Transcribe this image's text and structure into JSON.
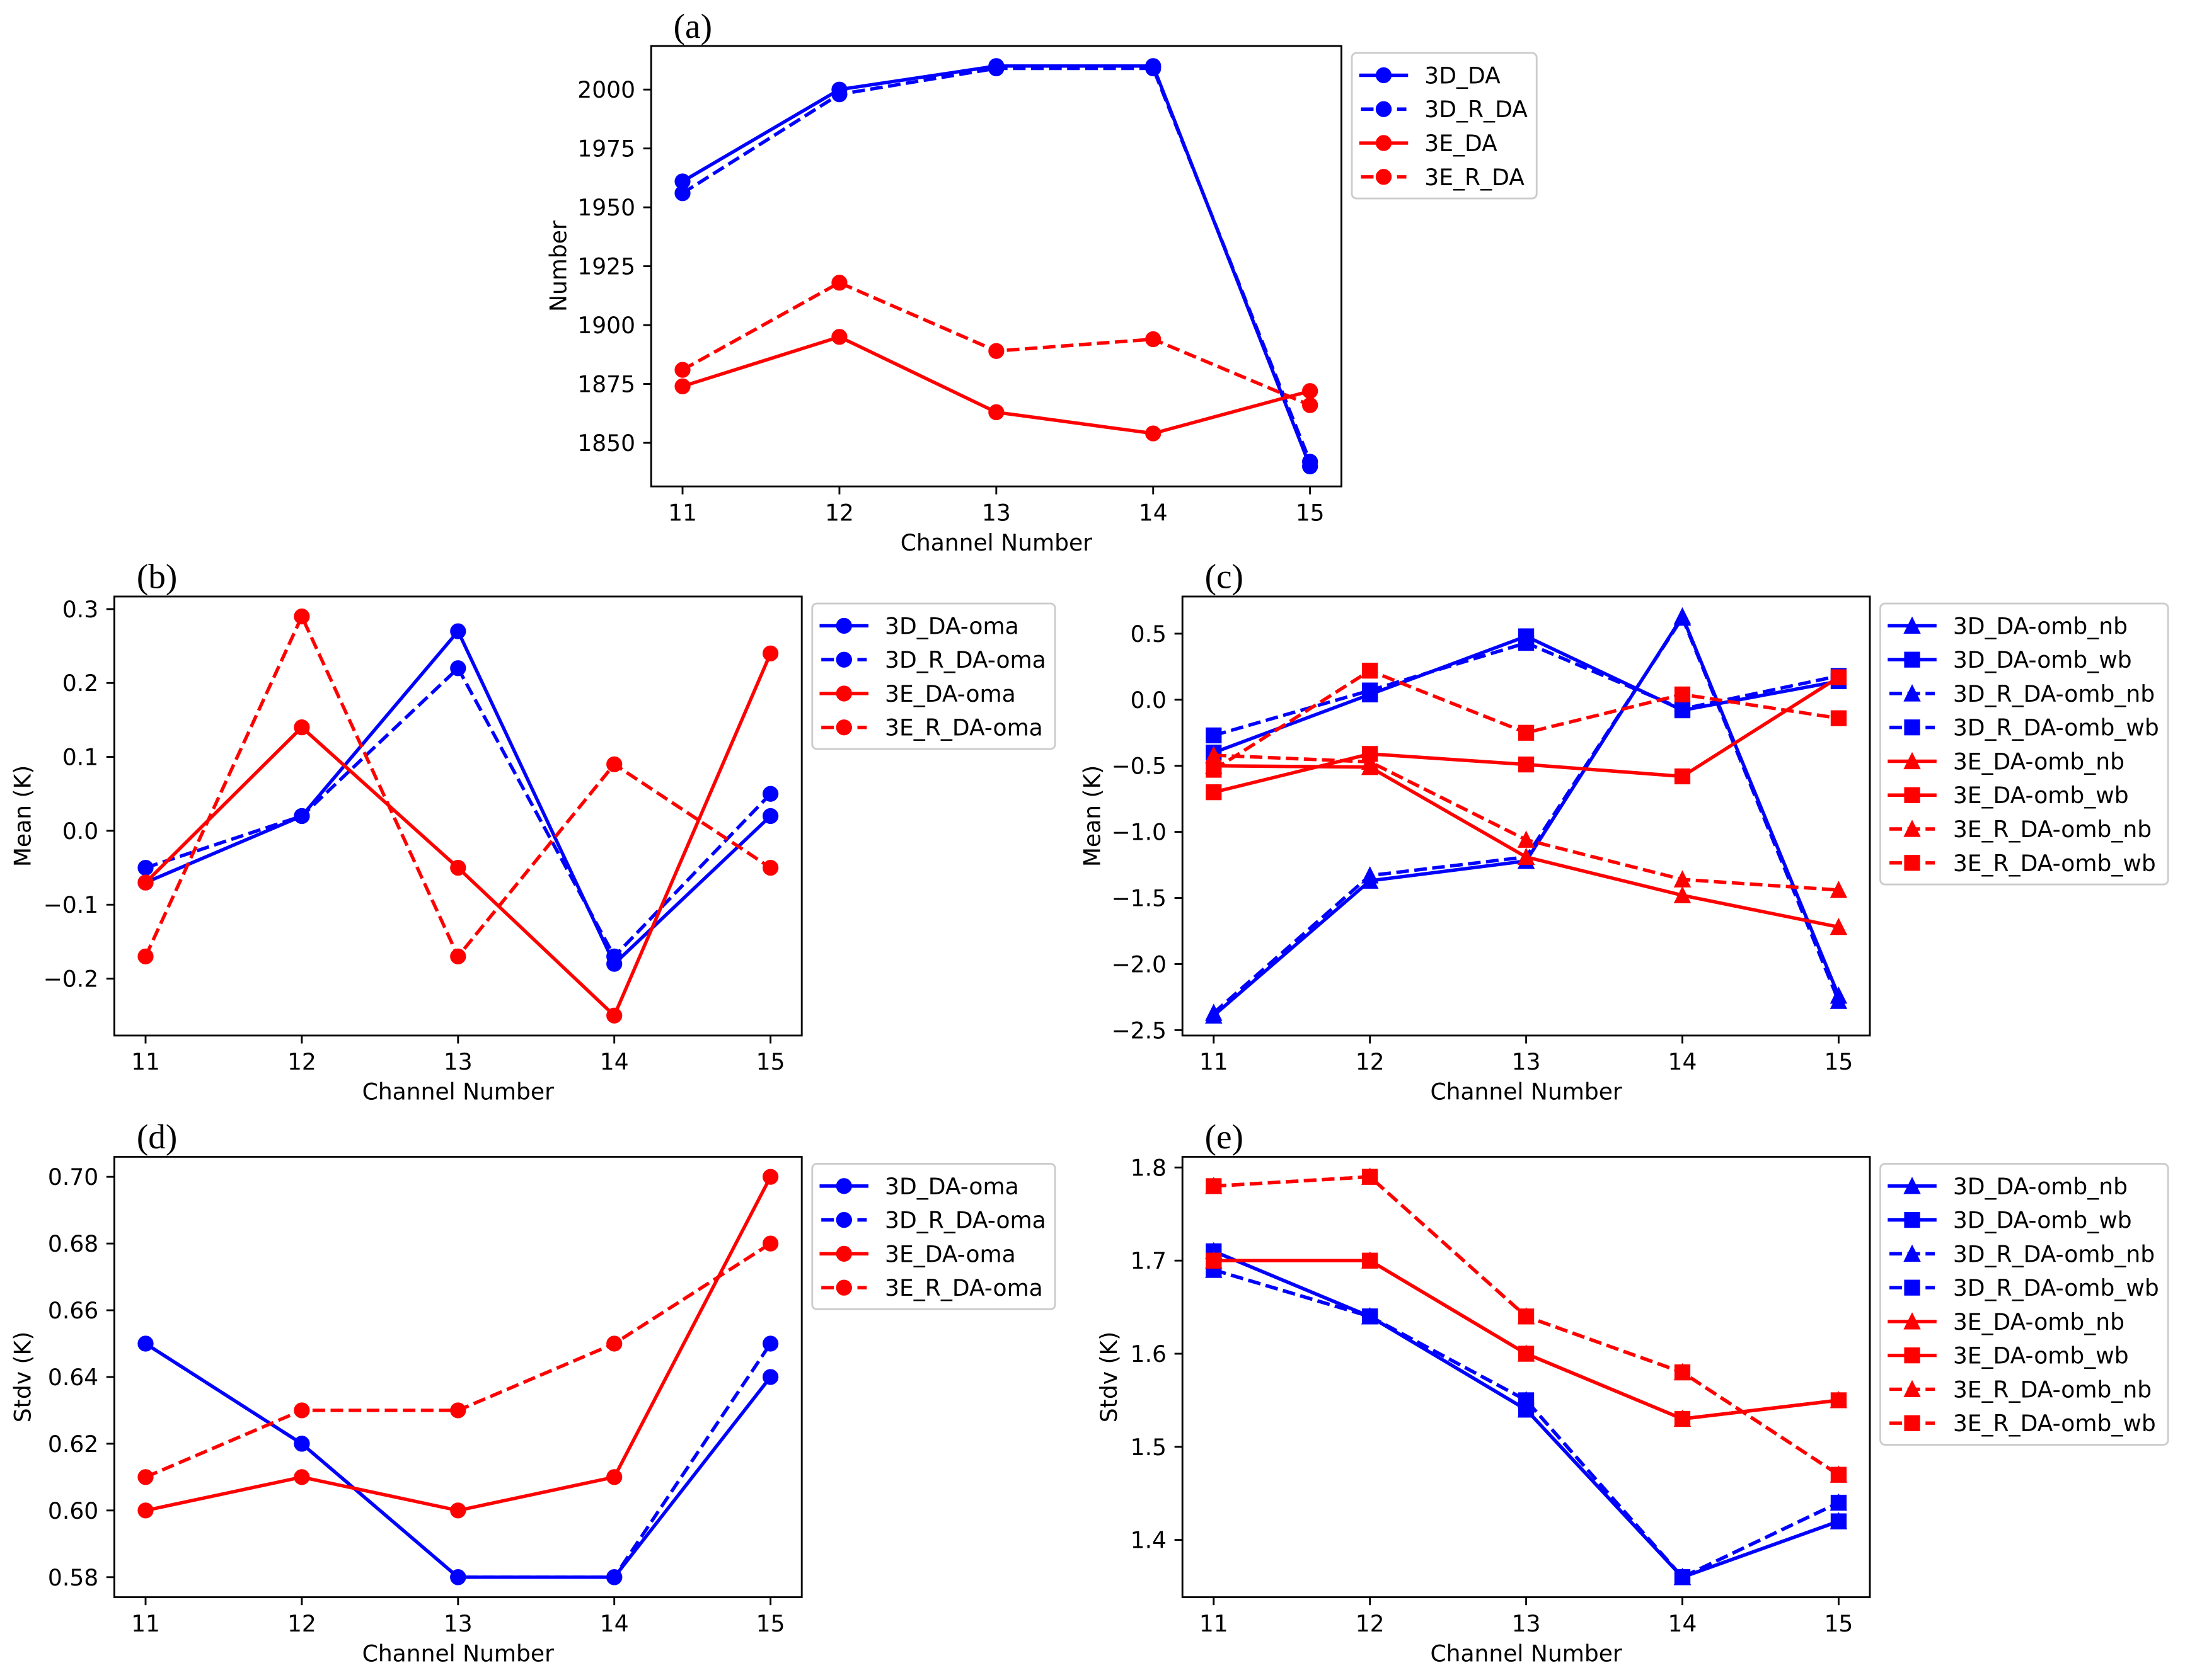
{
  "chart_data": [
    {
      "panel": "(a)",
      "type": "line",
      "x": [
        11,
        12,
        13,
        14,
        15
      ],
      "xtick_labels": [
        "11",
        "12",
        "13",
        "14",
        "15"
      ],
      "xlim": [
        10.8,
        15.2
      ],
      "ylim": [
        1831.5,
        2018.5
      ],
      "ytick_values": [
        2000,
        1975,
        1950,
        1925,
        1900,
        1875,
        1850
      ],
      "ytick_labels": [
        "2000",
        "1975",
        "1950",
        "1925",
        "1900",
        "1875",
        "1850"
      ],
      "xlabel": "Channel Number",
      "ylabel": "Number",
      "series": [
        {
          "name": "3D_DA",
          "values": [
            1961,
            2000,
            2010,
            2010,
            1840
          ],
          "color": "#0000ff",
          "dashed": false,
          "marker_icon": "circle-icon"
        },
        {
          "name": "3D_R_DA",
          "values": [
            1956,
            1998,
            2009,
            2009,
            1842
          ],
          "color": "#0000ff",
          "dashed": true,
          "marker_icon": "circle-icon"
        },
        {
          "name": "3E_DA",
          "values": [
            1874,
            1895,
            1863,
            1854,
            1872
          ],
          "color": "#ff0000",
          "dashed": false,
          "marker_icon": "circle-icon"
        },
        {
          "name": "3E_R_DA",
          "values": [
            1881,
            1918,
            1889,
            1894,
            1866
          ],
          "color": "#ff0000",
          "dashed": true,
          "marker_icon": "circle-icon"
        }
      ]
    },
    {
      "panel": "(b)",
      "type": "line",
      "x": [
        11,
        12,
        13,
        14,
        15
      ],
      "xtick_labels": [
        "11",
        "12",
        "13",
        "14",
        "15"
      ],
      "xlim": [
        10.8,
        15.2
      ],
      "ylim": [
        -0.277,
        0.317
      ],
      "ytick_values": [
        0.3,
        0.2,
        0.1,
        0.0,
        -0.1,
        -0.2
      ],
      "ytick_labels": [
        "0.3",
        "0.2",
        "0.1",
        "0.0",
        "−0.1",
        "−0.2"
      ],
      "xlabel": "Channel Number",
      "ylabel": "Mean (K)",
      "series": [
        {
          "name": "3D_DA-oma",
          "values": [
            -0.07,
            0.02,
            0.27,
            -0.18,
            0.02
          ],
          "color": "#0000ff",
          "dashed": false,
          "marker_icon": "circle-icon"
        },
        {
          "name": "3D_R_DA-oma",
          "values": [
            -0.05,
            0.02,
            0.22,
            -0.17,
            0.05
          ],
          "color": "#0000ff",
          "dashed": true,
          "marker_icon": "circle-icon"
        },
        {
          "name": "3E_DA-oma",
          "values": [
            -0.07,
            0.14,
            -0.05,
            -0.25,
            0.24
          ],
          "color": "#ff0000",
          "dashed": false,
          "marker_icon": "circle-icon"
        },
        {
          "name": "3E_R_DA-oma",
          "values": [
            -0.17,
            0.29,
            -0.17,
            0.09,
            -0.05
          ],
          "color": "#ff0000",
          "dashed": true,
          "marker_icon": "circle-icon"
        }
      ]
    },
    {
      "panel": "(c)",
      "type": "line",
      "x": [
        11,
        12,
        13,
        14,
        15
      ],
      "xtick_labels": [
        "11",
        "12",
        "13",
        "14",
        "15"
      ],
      "xlim": [
        10.8,
        15.2
      ],
      "ylim": [
        -2.541,
        0.781
      ],
      "ytick_values": [
        0.5,
        0.0,
        -0.5,
        -1.0,
        -1.5,
        -2.0,
        -2.5
      ],
      "ytick_labels": [
        "0.5",
        "0.0",
        "−0.5",
        "−1.0",
        "−1.5",
        "−2.0",
        "−2.5"
      ],
      "xlabel": "Channel Number",
      "ylabel": "Mean (K)",
      "series": [
        {
          "name": "3D_DA-omb_nb",
          "values": [
            -2.39,
            -1.37,
            -1.22,
            0.63,
            -2.24
          ],
          "color": "#0000ff",
          "dashed": false,
          "marker_icon": "triangle-icon"
        },
        {
          "name": "3D_DA-omb_wb",
          "values": [
            -0.4,
            0.04,
            0.48,
            -0.08,
            0.14
          ],
          "color": "#0000ff",
          "dashed": false,
          "marker_icon": "square-icon"
        },
        {
          "name": "3D_R_DA-omb_nb",
          "values": [
            -2.37,
            -1.33,
            -1.19,
            0.62,
            -2.28
          ],
          "color": "#0000ff",
          "dashed": true,
          "marker_icon": "triangle-icon"
        },
        {
          "name": "3D_R_DA-omb_wb",
          "values": [
            -0.27,
            0.07,
            0.43,
            -0.07,
            0.18
          ],
          "color": "#0000ff",
          "dashed": true,
          "marker_icon": "square-icon"
        },
        {
          "name": "3E_DA-omb_nb",
          "values": [
            -0.5,
            -0.51,
            -1.19,
            -1.48,
            -1.72
          ],
          "color": "#ff0000",
          "dashed": false,
          "marker_icon": "triangle-icon"
        },
        {
          "name": "3E_DA-omb_wb",
          "values": [
            -0.7,
            -0.41,
            -0.49,
            -0.58,
            0.17
          ],
          "color": "#ff0000",
          "dashed": false,
          "marker_icon": "square-icon"
        },
        {
          "name": "3E_R_DA-omb_nb",
          "values": [
            -0.42,
            -0.47,
            -1.06,
            -1.36,
            -1.44
          ],
          "color": "#ff0000",
          "dashed": true,
          "marker_icon": "triangle-icon"
        },
        {
          "name": "3E_R_DA-omb_wb",
          "values": [
            -0.53,
            0.22,
            -0.25,
            0.04,
            -0.14
          ],
          "color": "#ff0000",
          "dashed": true,
          "marker_icon": "square-icon"
        }
      ]
    },
    {
      "panel": "(d)",
      "type": "line",
      "x": [
        11,
        12,
        13,
        14,
        15
      ],
      "xtick_labels": [
        "11",
        "12",
        "13",
        "14",
        "15"
      ],
      "xlim": [
        10.8,
        15.2
      ],
      "ylim": [
        0.574,
        0.706
      ],
      "ytick_values": [
        0.7,
        0.68,
        0.66,
        0.64,
        0.62,
        0.6,
        0.58
      ],
      "ytick_labels": [
        "0.70",
        "0.68",
        "0.66",
        "0.64",
        "0.62",
        "0.60",
        "0.58"
      ],
      "xlabel": "Channel Number",
      "ylabel": "Stdv (K)",
      "series": [
        {
          "name": "3D_DA-oma",
          "values": [
            0.65,
            0.62,
            0.58,
            0.58,
            0.64
          ],
          "color": "#0000ff",
          "dashed": false,
          "marker_icon": "circle-icon"
        },
        {
          "name": "3D_R_DA-oma",
          "values": [
            0.65,
            0.62,
            0.58,
            0.58,
            0.65
          ],
          "color": "#0000ff",
          "dashed": true,
          "marker_icon": "circle-icon"
        },
        {
          "name": "3E_DA-oma",
          "values": [
            0.6,
            0.61,
            0.6,
            0.61,
            0.7
          ],
          "color": "#ff0000",
          "dashed": false,
          "marker_icon": "circle-icon"
        },
        {
          "name": "3E_R_DA-oma",
          "values": [
            0.61,
            0.63,
            0.63,
            0.65,
            0.68
          ],
          "color": "#ff0000",
          "dashed": true,
          "marker_icon": "circle-icon"
        }
      ]
    },
    {
      "panel": "(e)",
      "type": "line",
      "x": [
        11,
        12,
        13,
        14,
        15
      ],
      "xtick_labels": [
        "11",
        "12",
        "13",
        "14",
        "15"
      ],
      "xlim": [
        10.8,
        15.2
      ],
      "ylim": [
        1.3385,
        1.8115
      ],
      "ytick_values": [
        1.8,
        1.7,
        1.6,
        1.5,
        1.4
      ],
      "ytick_labels": [
        "1.8",
        "1.7",
        "1.6",
        "1.5",
        "1.4"
      ],
      "xlabel": "Channel Number",
      "ylabel": "Stdv (K)",
      "series": [
        {
          "name": "3D_DA-omb_nb",
          "values": [
            1.71,
            1.64,
            1.54,
            1.36,
            1.42
          ],
          "color": "#0000ff",
          "dashed": false,
          "marker_icon": "triangle-icon"
        },
        {
          "name": "3D_DA-omb_wb",
          "values": [
            1.71,
            1.64,
            1.54,
            1.36,
            1.42
          ],
          "color": "#0000ff",
          "dashed": false,
          "marker_icon": "square-icon"
        },
        {
          "name": "3D_R_DA-omb_nb",
          "values": [
            1.69,
            1.64,
            1.55,
            1.36,
            1.44
          ],
          "color": "#0000ff",
          "dashed": true,
          "marker_icon": "triangle-icon"
        },
        {
          "name": "3D_R_DA-omb_wb",
          "values": [
            1.69,
            1.64,
            1.55,
            1.36,
            1.44
          ],
          "color": "#0000ff",
          "dashed": true,
          "marker_icon": "square-icon"
        },
        {
          "name": "3E_DA-omb_nb",
          "values": [
            1.7,
            1.7,
            1.6,
            1.53,
            1.55
          ],
          "color": "#ff0000",
          "dashed": false,
          "marker_icon": "triangle-icon"
        },
        {
          "name": "3E_DA-omb_wb",
          "values": [
            1.7,
            1.7,
            1.6,
            1.53,
            1.55
          ],
          "color": "#ff0000",
          "dashed": false,
          "marker_icon": "square-icon"
        },
        {
          "name": "3E_R_DA-omb_nb",
          "values": [
            1.78,
            1.79,
            1.64,
            1.58,
            1.47
          ],
          "color": "#ff0000",
          "dashed": true,
          "marker_icon": "triangle-icon"
        },
        {
          "name": "3E_R_DA-omb_wb",
          "values": [
            1.78,
            1.79,
            1.64,
            1.58,
            1.47
          ],
          "color": "#ff0000",
          "dashed": true,
          "marker_icon": "square-icon"
        }
      ]
    }
  ]
}
